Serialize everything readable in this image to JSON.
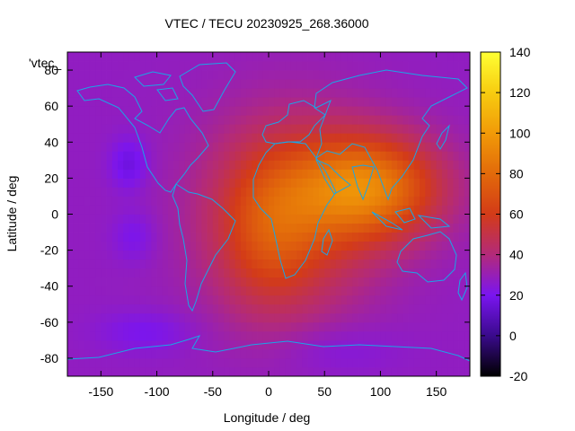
{
  "chart_data": {
    "type": "heatmap",
    "title": "VTEC / TECU 20230925_268.36000",
    "xlabel": "Longitude / deg",
    "ylabel": "Latitude / deg",
    "xlim": [
      -180,
      180
    ],
    "ylim": [
      -90,
      90
    ],
    "x_ticks": [
      -150,
      -100,
      -50,
      0,
      50,
      100,
      150
    ],
    "y_ticks": [
      -80,
      -60,
      -40,
      -20,
      0,
      20,
      40,
      60,
      80
    ],
    "colorbar": {
      "range": [
        -20,
        140
      ],
      "ticks": [
        -20,
        0,
        20,
        40,
        60,
        80,
        100,
        120,
        140
      ],
      "colors": [
        "#000000",
        "#3a0a8c",
        "#7a15f0",
        "#b32a7a",
        "#d33b18",
        "#e26a0a",
        "#f19a08",
        "#f7cc10",
        "#ffff33"
      ]
    },
    "legend_text": "'vtec_",
    "background_value": 28,
    "features": [
      {
        "lon": 20,
        "lat": 0,
        "sigma_lon": 55,
        "sigma_lat": 38,
        "amplitude": 30
      },
      {
        "lon": 90,
        "lat": 15,
        "sigma_lon": 45,
        "sigma_lat": 20,
        "amplitude": 55
      },
      {
        "lon": 0,
        "lat": -10,
        "sigma_lon": 30,
        "sigma_lat": 30,
        "amplitude": 20
      },
      {
        "lon": -125,
        "lat": 28,
        "sigma_lon": 12,
        "sigma_lat": 10,
        "amplitude": -12
      },
      {
        "lon": -120,
        "lat": -12,
        "sigma_lon": 14,
        "sigma_lat": 10,
        "amplitude": -8
      },
      {
        "lon": -110,
        "lat": -65,
        "sigma_lon": 30,
        "sigma_lat": 8,
        "amplitude": -8
      },
      {
        "lon": 60,
        "lat": -75,
        "sigma_lon": 40,
        "sigma_lat": 10,
        "amplitude": -6
      }
    ]
  }
}
